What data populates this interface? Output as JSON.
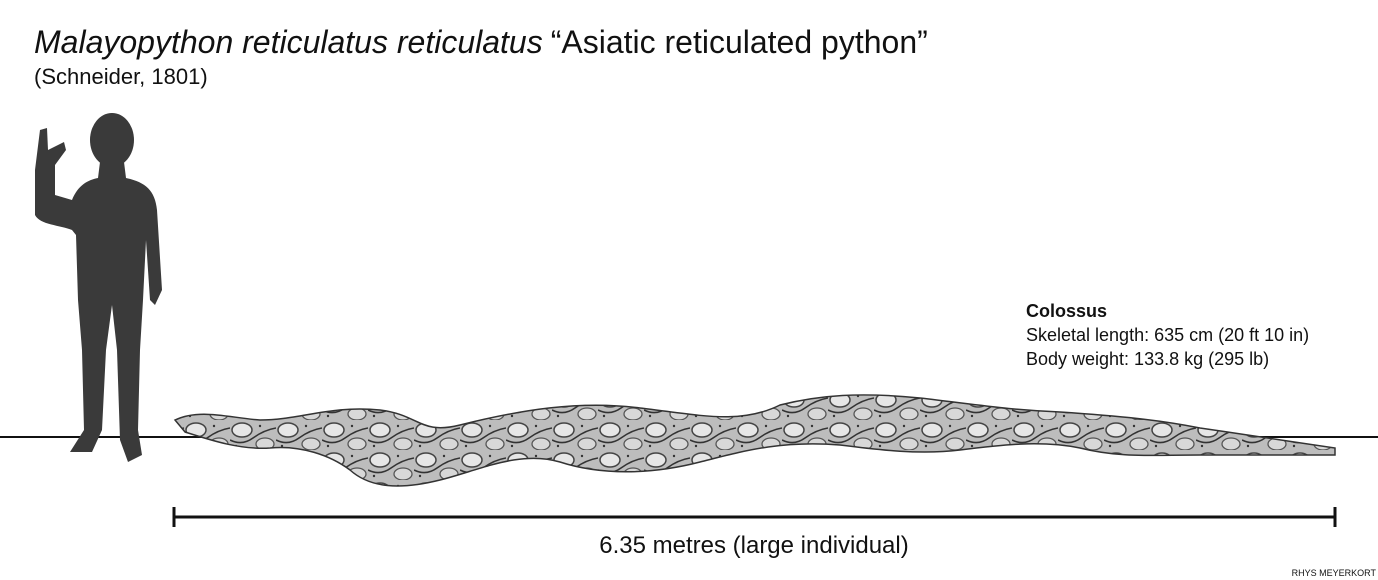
{
  "header": {
    "scientific_name": "Malayopython reticulatus reticulatus",
    "common_name": "“Asiatic reticulated python”",
    "authority": "(Schneider, 1801)"
  },
  "specimen": {
    "name": "Colossus",
    "skeletal_length": "Skeletal length: 635 cm (20 ft 10 in)",
    "body_weight": "Body weight: 133.8 kg (295 lb)"
  },
  "scale_bar": {
    "label": "6.35 metres (large individual)"
  },
  "credit": "RHYS MEYERKORT"
}
